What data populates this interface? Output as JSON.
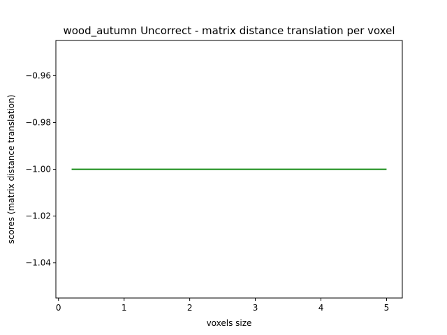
{
  "chart_data": {
    "type": "line",
    "title": "wood_autumn Uncorrect - matrix distance translation per voxel",
    "xlabel": "voxels size",
    "ylabel": "scores (matrix distance translation)",
    "xlim": [
      -0.04,
      5.24
    ],
    "ylim": [
      -1.055,
      -0.945
    ],
    "xticks": [
      0,
      1,
      2,
      3,
      4,
      5
    ],
    "xtick_labels": [
      "0",
      "1",
      "2",
      "3",
      "4",
      "5"
    ],
    "yticks": [
      -0.96,
      -0.98,
      -1.0,
      -1.02,
      -1.04
    ],
    "ytick_labels": [
      "−0.96",
      "−0.98",
      "−1.00",
      "−1.02",
      "−1.04"
    ],
    "grid": false,
    "series": [
      {
        "color": "#008000",
        "x": [
          0.2,
          5.0
        ],
        "y": [
          -1.0,
          -1.0
        ]
      }
    ]
  }
}
